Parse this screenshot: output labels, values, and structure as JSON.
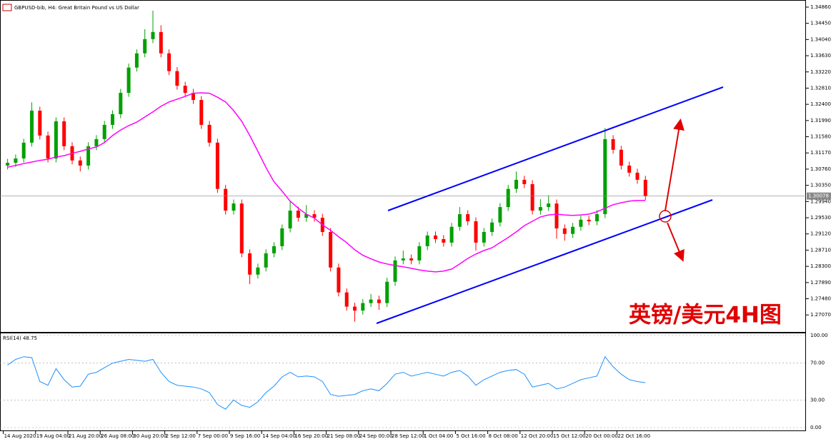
{
  "chart_data": [
    {
      "type": "candlestick",
      "title": "GBPUSD-bib, H4:  Great Britain Pound vs US Dollar",
      "annotation": "英镑/美元4H图",
      "x_labels": [
        "14 Aug 2020",
        "19 Aug 04:00",
        "21 Aug 20:00",
        "26 Aug 08:00",
        "30 Aug 20:00",
        "2 Sep 12:00",
        "7 Sep 00:00",
        "9 Sep 16:00",
        "14 Sep 04:00",
        "16 Sep 20:00",
        "21 Sep 08:00",
        "24 Sep 00:00",
        "28 Sep 12:00",
        "1 Oct 04:00",
        "5 Oct 16:00",
        "8 Oct 08:00",
        "12 Oct 20:00",
        "15 Oct 12:00",
        "20 Oct 00:00",
        "22 Oct 16:00"
      ],
      "open": [
        1.3085,
        1.3092,
        1.3103,
        1.3143,
        1.3224,
        1.3161,
        1.3103,
        1.3197,
        1.3134,
        1.3098,
        1.3085,
        1.3134,
        1.3152,
        1.3188,
        1.3215,
        1.3269,
        1.3333,
        1.3369,
        1.3405,
        1.3423,
        1.3369,
        1.3324,
        1.3287,
        1.3269,
        1.3251,
        1.3188,
        1.3143,
        1.3026,
        1.2971,
        1.2989,
        1.2863,
        1.2809,
        1.2827,
        1.2863,
        1.2881,
        1.2926,
        1.2971,
        1.2953,
        1.2962,
        1.2953,
        1.2917,
        1.2827,
        1.2764,
        1.2728,
        1.2718,
        1.2737,
        1.2746,
        1.2737,
        1.2791,
        1.2845,
        1.285,
        1.2845,
        1.2881,
        1.2908,
        1.2899,
        1.289,
        1.293,
        1.2962,
        1.2944,
        1.289,
        1.2917,
        1.2941,
        1.298,
        1.3026,
        1.3049,
        1.3038,
        1.2971,
        1.298,
        1.2989,
        1.2926,
        1.2912,
        1.293,
        1.2948,
        1.2944,
        1.2962,
        1.3152,
        1.3125,
        1.3085,
        1.3067,
        1.3049
      ],
      "high": [
        1.3102,
        1.3113,
        1.3153,
        1.3245,
        1.3234,
        1.3171,
        1.3207,
        1.3207,
        1.3144,
        1.3108,
        1.3144,
        1.3162,
        1.3198,
        1.3225,
        1.3279,
        1.3343,
        1.3379,
        1.343,
        1.3477,
        1.344,
        1.3379,
        1.3334,
        1.3297,
        1.3279,
        1.3261,
        1.3198,
        1.3153,
        1.3036,
        1.2999,
        1.2999,
        1.2873,
        1.2837,
        1.2873,
        1.2891,
        1.2936,
        1.2995,
        1.2981,
        1.2985,
        1.2972,
        1.2963,
        1.2927,
        1.2837,
        1.2774,
        1.2738,
        1.2747,
        1.276,
        1.2756,
        1.2801,
        1.2855,
        1.287,
        1.286,
        1.2891,
        1.2918,
        1.2918,
        1.2909,
        1.294,
        1.298,
        1.2972,
        1.2954,
        1.2927,
        1.2951,
        1.299,
        1.3036,
        1.307,
        1.3059,
        1.3048,
        1.3,
        1.301,
        1.2999,
        1.2936,
        1.294,
        1.2958,
        1.2958,
        1.2972,
        1.318,
        1.3162,
        1.3135,
        1.3095,
        1.3077,
        1.3059
      ],
      "low": [
        1.3075,
        1.3082,
        1.3093,
        1.3133,
        1.3151,
        1.3093,
        1.3093,
        1.3124,
        1.3088,
        1.307,
        1.3075,
        1.3124,
        1.3142,
        1.3178,
        1.3205,
        1.3259,
        1.3323,
        1.3359,
        1.3395,
        1.3359,
        1.3314,
        1.3277,
        1.3259,
        1.3241,
        1.3178,
        1.3133,
        1.3016,
        1.2961,
        1.2961,
        1.2853,
        1.2785,
        1.2799,
        1.2817,
        1.2853,
        1.2871,
        1.2916,
        1.2943,
        1.2943,
        1.2943,
        1.2907,
        1.2817,
        1.2754,
        1.2718,
        1.269,
        1.2708,
        1.2727,
        1.272,
        1.2727,
        1.2781,
        1.2835,
        1.2835,
        1.2835,
        1.2871,
        1.2889,
        1.288,
        1.288,
        1.292,
        1.2934,
        1.287,
        1.288,
        1.2907,
        1.2931,
        1.297,
        1.3016,
        1.3028,
        1.2961,
        1.2961,
        1.297,
        1.29,
        1.2895,
        1.2902,
        1.292,
        1.2934,
        1.2934,
        1.2952,
        1.3115,
        1.3075,
        1.3057,
        1.3039,
        1.2998
      ],
      "close": [
        1.3092,
        1.3103,
        1.3143,
        1.3224,
        1.3161,
        1.3103,
        1.3197,
        1.3134,
        1.3098,
        1.3085,
        1.3134,
        1.3152,
        1.3188,
        1.3215,
        1.3269,
        1.3333,
        1.3369,
        1.3405,
        1.3423,
        1.3369,
        1.3324,
        1.3287,
        1.3269,
        1.3251,
        1.3188,
        1.3143,
        1.3026,
        1.2971,
        1.2989,
        1.2863,
        1.2809,
        1.2827,
        1.2863,
        1.2881,
        1.2926,
        1.2971,
        1.2953,
        1.2962,
        1.2953,
        1.2917,
        1.2827,
        1.2764,
        1.2728,
        1.2718,
        1.2737,
        1.2746,
        1.2737,
        1.2791,
        1.2845,
        1.285,
        1.2845,
        1.2881,
        1.2908,
        1.2899,
        1.289,
        1.293,
        1.2962,
        1.2944,
        1.289,
        1.2917,
        1.2941,
        1.298,
        1.3026,
        1.3049,
        1.3038,
        1.2971,
        1.298,
        1.2989,
        1.2926,
        1.2912,
        1.293,
        1.2948,
        1.2944,
        1.2962,
        1.3152,
        1.3125,
        1.3085,
        1.3067,
        1.3049,
        1.3008
      ],
      "up_color": "#00a000",
      "down_color": "#ff0000",
      "ma": {
        "color": "#ff00ff",
        "values": [
          1.3081,
          1.3085,
          1.309,
          1.3094,
          1.3098,
          1.3101,
          1.3107,
          1.311,
          1.3116,
          1.3121,
          1.3127,
          1.3132,
          1.3143,
          1.3161,
          1.3175,
          1.3186,
          1.3195,
          1.3208,
          1.3221,
          1.3235,
          1.3246,
          1.3253,
          1.326,
          1.3268,
          1.3269,
          1.3268,
          1.3258,
          1.3246,
          1.3224,
          1.3197,
          1.3161,
          1.3121,
          1.308,
          1.3044,
          1.302,
          1.2995,
          1.2977,
          1.2962,
          1.2952,
          1.2935,
          1.2921,
          1.2905,
          1.289,
          1.2872,
          1.2858,
          1.2849,
          1.2841,
          1.2836,
          1.2832,
          1.2829,
          1.2825,
          1.2821,
          1.2818,
          1.2816,
          1.2818,
          1.2823,
          1.2836,
          1.285,
          1.2861,
          1.287,
          1.2877,
          1.289,
          1.2903,
          1.2917,
          1.2933,
          1.2944,
          1.2955,
          1.296,
          1.2962,
          1.296,
          1.2959,
          1.296,
          1.2962,
          1.2968,
          1.2977,
          1.2986,
          1.2991,
          1.2995,
          1.2997,
          1.2997
        ]
      },
      "last_price": 1.30078,
      "ylim": [
        1.2664,
        1.3504
      ],
      "yticks": [
        {
          "value": 1.3486,
          "label": "1.34860"
        },
        {
          "value": 1.3445,
          "label": "1.34450"
        },
        {
          "value": 1.3404,
          "label": "1.34040"
        },
        {
          "value": 1.3363,
          "label": "1.33630"
        },
        {
          "value": 1.3322,
          "label": "1.33220"
        },
        {
          "value": 1.3281,
          "label": "1.32810"
        },
        {
          "value": 1.324,
          "label": "1.32400"
        },
        {
          "value": 1.3199,
          "label": "1.31990"
        },
        {
          "value": 1.3158,
          "label": "1.31580"
        },
        {
          "value": 1.3117,
          "label": "1.31170"
        },
        {
          "value": 1.3076,
          "label": "1.30760"
        },
        {
          "value": 1.3035,
          "label": "1.30350"
        },
        {
          "value": 1.2994,
          "label": "1.29940"
        },
        {
          "value": 1.2953,
          "label": "1.29530"
        },
        {
          "value": 1.2912,
          "label": "1.29120"
        },
        {
          "value": 1.2871,
          "label": "1.28710"
        },
        {
          "value": 1.283,
          "label": "1.28300"
        },
        {
          "value": 1.2789,
          "label": "1.27890"
        },
        {
          "value": 1.2748,
          "label": "1.27480"
        },
        {
          "value": 1.2707,
          "label": "1.27070"
        }
      ]
    },
    {
      "type": "line",
      "title": "RSI(14) 48.75",
      "color": "#1e90ff",
      "values": [
        68,
        74,
        77,
        76,
        50,
        46,
        64,
        52,
        44,
        45,
        58,
        60,
        65,
        70,
        72,
        74,
        73,
        72,
        74,
        60,
        50,
        46,
        45,
        44,
        42,
        38,
        25,
        20,
        30,
        24,
        22,
        28,
        38,
        45,
        55,
        60,
        55,
        56,
        55,
        50,
        36,
        34,
        35,
        36,
        40,
        42,
        40,
        48,
        58,
        60,
        56,
        58,
        60,
        58,
        56,
        60,
        62,
        56,
        46,
        52,
        56,
        60,
        62,
        63,
        58,
        44,
        46,
        48,
        42,
        44,
        48,
        52,
        54,
        56,
        77,
        66,
        58,
        52,
        50,
        48.75
      ],
      "ylim": [
        0,
        100
      ],
      "yticks": [
        {
          "value": 100,
          "label": "100.00"
        },
        {
          "value": 70,
          "label": "70.00"
        },
        {
          "value": 30,
          "label": "30.00"
        },
        {
          "value": 0,
          "label": "0.00"
        }
      ]
    }
  ]
}
